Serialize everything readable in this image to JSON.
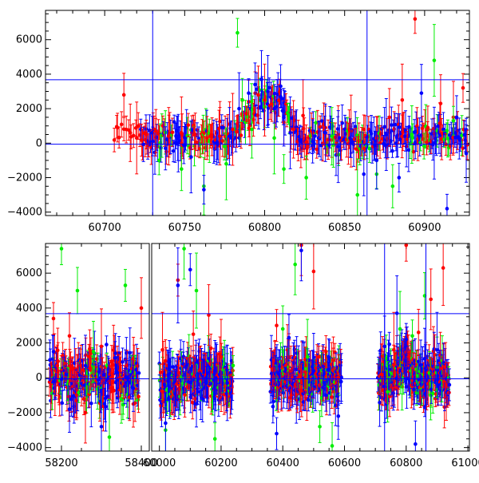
{
  "colors": {
    "blue": "#0000ff",
    "red": "#ff0000",
    "green": "#00ee00",
    "frame": "#000000",
    "background": "#ffffff"
  },
  "chart_data": [
    {
      "type": "scatter",
      "name": "top-panel",
      "title": "",
      "xlabel": "",
      "ylabel": "",
      "xlim": [
        60663,
        60928
      ],
      "ylim": [
        -4200,
        7700
      ],
      "x_ticks": [
        60700,
        60750,
        60800,
        60850,
        60900
      ],
      "x_tick_labels": [
        "60700",
        "60750",
        "60800",
        "60850",
        "60900"
      ],
      "y_ticks": [
        -4000,
        -2000,
        0,
        2000,
        4000,
        6000
      ],
      "y_tick_labels": [
        "−4000",
        "−2000",
        "0",
        "2000",
        "4000",
        "6000"
      ],
      "hlines": [
        3680,
        -60
      ],
      "vlines": [
        60730,
        60864
      ],
      "series": [
        {
          "name": "red",
          "color": "red",
          "x": [
            60708,
            60712,
            60716,
            60720,
            60726,
            60732,
            60740,
            60748,
            60756,
            60764,
            60772,
            60780,
            60786,
            60790,
            60796,
            60800,
            60806,
            60812,
            60818,
            60824,
            60830,
            60838,
            60846,
            60854,
            60862,
            60870,
            60878,
            60886,
            60894,
            60902,
            60910,
            60918,
            60924
          ],
          "y": [
            900,
            2800,
            600,
            300,
            500,
            700,
            400,
            600,
            500,
            300,
            400,
            800,
            1600,
            2400,
            2800,
            2500,
            2000,
            1200,
            800,
            1600,
            600,
            900,
            500,
            700,
            800,
            300,
            1500,
            2500,
            7200,
            900,
            2300,
            1500,
            3200
          ]
        },
        {
          "name": "green",
          "color": "green",
          "x": [
            60734,
            60748,
            60762,
            60776,
            60783,
            60786,
            60792,
            60806,
            60812,
            60826,
            60842,
            60858,
            60870,
            60880,
            60892,
            60906,
            60918
          ],
          "y": [
            -1000,
            -1500,
            -2500,
            -1200,
            6400,
            2500,
            800,
            300,
            -1500,
            -2000,
            400,
            -3000,
            -1800,
            -2500,
            500,
            4800,
            1300
          ]
        },
        {
          "name": "blue",
          "color": "blue",
          "x": [
            60730,
            60738,
            60746,
            60754,
            60762,
            60770,
            60778,
            60784,
            60790,
            60794,
            60798,
            60802,
            60806,
            60810,
            60812,
            60816,
            60822,
            60830,
            60838,
            60846,
            60854,
            60862,
            60870,
            60876,
            60884,
            60890,
            60898,
            60906,
            60914,
            60920,
            60926
          ],
          "y": [
            100,
            -300,
            0,
            -800,
            -2700,
            0,
            400,
            2000,
            2900,
            3400,
            3700,
            3000,
            2000,
            3300,
            1500,
            600,
            200,
            100,
            600,
            -200,
            0,
            -1800,
            -1000,
            500,
            -2000,
            -400,
            2900,
            0,
            -3800,
            1500,
            -600
          ]
        }
      ]
    },
    {
      "type": "scatter",
      "name": "bottom-panel",
      "title": "",
      "xlabel": "",
      "ylabel": "",
      "segments": [
        {
          "xlim": [
            58160,
            58420
          ],
          "x_ticks": [
            58200,
            58400
          ],
          "x_tick_labels": [
            "58200",
            "58400"
          ]
        },
        {
          "xlim": [
            59975,
            61005
          ],
          "x_ticks": [
            60000,
            60200,
            60400,
            60600,
            60800,
            61000
          ],
          "x_tick_labels": [
            "60000",
            "60200",
            "60400",
            "60600",
            "60800",
            "61000"
          ]
        }
      ],
      "ylim": [
        -4200,
        7700
      ],
      "y_ticks": [
        -4000,
        -2000,
        0,
        2000,
        4000,
        6000
      ],
      "y_tick_labels": [
        "−4000",
        "−2000",
        "0",
        "2000",
        "4000",
        "6000"
      ],
      "hlines": [
        3680,
        -60
      ],
      "vlines": [
        60730,
        60864
      ],
      "clusters": [
        {
          "segment": 0,
          "x_from": 58170,
          "x_to": 58395
        },
        {
          "segment": 1,
          "x_from": 60000,
          "x_to": 60240
        },
        {
          "segment": 1,
          "x_from": 60360,
          "x_to": 60590
        },
        {
          "segment": 1,
          "x_from": 60708,
          "x_to": 60940
        }
      ],
      "series": [
        {
          "name": "red",
          "color": "red",
          "x": [
            58180,
            58220,
            58260,
            58300,
            58340,
            58380,
            58400,
            60010,
            60060,
            60110,
            60160,
            60200,
            60380,
            60420,
            60460,
            60500,
            60540,
            60580,
            60720,
            60760,
            60800,
            60840,
            60880,
            60920
          ],
          "y": [
            3400,
            2400,
            -2000,
            1800,
            900,
            -1500,
            4000,
            1600,
            5600,
            2500,
            3600,
            1200,
            3000,
            1200,
            7600,
            6100,
            1500,
            0,
            200,
            1600,
            7600,
            2600,
            4500,
            6300
          ]
        },
        {
          "name": "green",
          "color": "green",
          "x": [
            58200,
            58240,
            58280,
            58320,
            58360,
            60020,
            60080,
            60120,
            60180,
            60400,
            60440,
            60480,
            60520,
            60560,
            60740,
            60780,
            60820,
            60860,
            60900
          ],
          "y": [
            7400,
            5000,
            1500,
            -3400,
            5300,
            -3000,
            7400,
            5000,
            -3500,
            2800,
            6500,
            1200,
            -2800,
            -3900,
            -800,
            2800,
            2400,
            4700,
            600
          ]
        },
        {
          "name": "blue",
          "color": "blue",
          "x": [
            58180,
            58220,
            58260,
            58300,
            58340,
            58380,
            60020,
            60060,
            60100,
            60140,
            60180,
            60220,
            60380,
            60420,
            60460,
            60500,
            60540,
            60580,
            60730,
            60770,
            60800,
            60830,
            60860,
            60900,
            60940
          ],
          "y": [
            1500,
            -1800,
            700,
            -2800,
            300,
            -600,
            -2600,
            5300,
            6200,
            -1200,
            400,
            -300,
            -3200,
            2300,
            7300,
            400,
            -1000,
            -2200,
            1800,
            3700,
            2200,
            -3800,
            1100,
            1600,
            -400
          ]
        }
      ]
    }
  ]
}
